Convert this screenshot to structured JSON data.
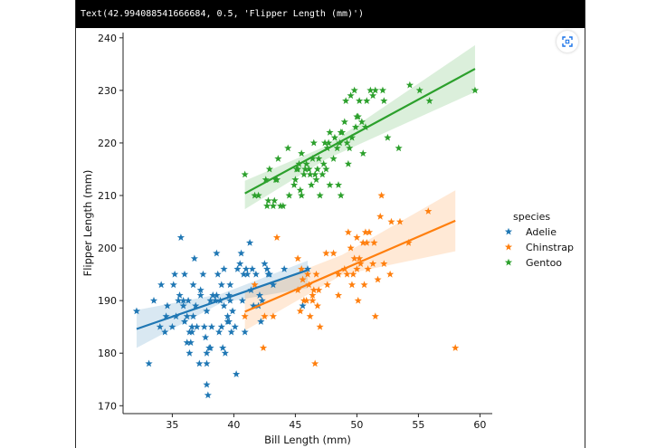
{
  "output": {
    "header_text": "Text(42.994088541666684, 0.5, 'Flipper Length (mm)')",
    "fullscreen_icon": "fullscreen-icon"
  },
  "chart_data": {
    "type": "scatter",
    "marker": "star",
    "xlabel": "Bill Length (mm)",
    "ylabel": "Flipper Length (mm)",
    "xlim": [
      31,
      61
    ],
    "ylim": [
      168.5,
      241
    ],
    "x_ticks": [
      35,
      40,
      45,
      50,
      55,
      60
    ],
    "y_ticks": [
      170,
      180,
      190,
      200,
      210,
      220,
      230,
      240
    ],
    "legend": {
      "title": "species",
      "position": "center-right"
    },
    "series": [
      {
        "name": "Adelie",
        "color": "#1f77b4",
        "regression": {
          "x": [
            32.1,
            46.0
          ],
          "y": [
            184.6,
            195.8
          ]
        },
        "ci_band": {
          "x": [
            32.1,
            39.0,
            46.0
          ],
          "upper": [
            188.2,
            191.3,
            197.6
          ],
          "lower": [
            181.0,
            189.6,
            192.4
          ]
        },
        "points": [
          [
            32.1,
            188
          ],
          [
            33.1,
            178
          ],
          [
            33.5,
            190
          ],
          [
            34.0,
            185
          ],
          [
            34.1,
            193
          ],
          [
            34.4,
            184
          ],
          [
            34.5,
            187
          ],
          [
            34.6,
            189
          ],
          [
            35.0,
            185
          ],
          [
            35.1,
            193
          ],
          [
            35.2,
            195
          ],
          [
            35.3,
            187
          ],
          [
            35.5,
            190
          ],
          [
            35.6,
            191
          ],
          [
            35.7,
            202
          ],
          [
            35.9,
            190
          ],
          [
            35.9,
            189
          ],
          [
            36.0,
            195
          ],
          [
            36.0,
            186
          ],
          [
            36.2,
            187
          ],
          [
            36.2,
            182
          ],
          [
            36.3,
            190
          ],
          [
            36.4,
            184
          ],
          [
            36.5,
            182
          ],
          [
            36.6,
            184
          ],
          [
            36.6,
            185
          ],
          [
            36.7,
            187
          ],
          [
            36.7,
            193
          ],
          [
            36.8,
            198
          ],
          [
            36.9,
            189
          ],
          [
            37.0,
            185
          ],
          [
            37.2,
            178
          ],
          [
            37.3,
            192
          ],
          [
            37.3,
            191
          ],
          [
            37.5,
            195
          ],
          [
            37.6,
            185
          ],
          [
            37.7,
            183
          ],
          [
            37.8,
            174
          ],
          [
            37.8,
            180
          ],
          [
            37.8,
            178
          ],
          [
            37.9,
            172
          ],
          [
            38.0,
            181
          ],
          [
            38.1,
            181
          ],
          [
            38.1,
            190
          ],
          [
            38.2,
            185
          ],
          [
            38.3,
            191
          ],
          [
            38.5,
            190
          ],
          [
            38.6,
            199
          ],
          [
            38.6,
            191
          ],
          [
            38.7,
            195
          ],
          [
            38.8,
            184
          ],
          [
            38.9,
            190
          ],
          [
            39.0,
            185
          ],
          [
            39.0,
            193
          ],
          [
            39.1,
            181
          ],
          [
            39.2,
            196
          ],
          [
            39.2,
            189
          ],
          [
            39.3,
            180
          ],
          [
            39.5,
            187
          ],
          [
            39.5,
            186
          ],
          [
            39.6,
            186
          ],
          [
            39.6,
            191
          ],
          [
            39.7,
            190
          ],
          [
            39.8,
            184
          ],
          [
            39.9,
            188
          ],
          [
            40.1,
            185
          ],
          [
            40.2,
            176
          ],
          [
            40.3,
            196
          ],
          [
            40.5,
            197
          ],
          [
            40.6,
            199
          ],
          [
            40.7,
            190
          ],
          [
            40.8,
            195
          ],
          [
            40.9,
            184
          ],
          [
            41.0,
            196
          ],
          [
            41.1,
            195
          ],
          [
            41.3,
            201
          ],
          [
            41.4,
            192
          ],
          [
            41.5,
            196
          ],
          [
            41.6,
            189
          ],
          [
            41.8,
            195
          ],
          [
            42.0,
            189
          ],
          [
            42.1,
            191
          ],
          [
            42.2,
            186
          ],
          [
            42.3,
            190
          ],
          [
            42.5,
            197
          ],
          [
            42.7,
            196
          ],
          [
            42.8,
            195
          ],
          [
            42.9,
            195
          ],
          [
            43.2,
            193
          ],
          [
            44.1,
            196
          ],
          [
            45.6,
            189
          ],
          [
            46.0,
            196
          ],
          [
            36.4,
            180
          ],
          [
            37.8,
            188
          ],
          [
            39.7,
            193
          ]
        ]
      },
      {
        "name": "Chinstrap",
        "color": "#ff7f0e",
        "regression": {
          "x": [
            40.9,
            58.0
          ],
          "y": [
            187.9,
            205.2
          ]
        },
        "ci_band": {
          "x": [
            40.9,
            48.8,
            58.0
          ],
          "upper": [
            191.5,
            198.7,
            211.0
          ],
          "lower": [
            184.3,
            194.9,
            199.4
          ]
        },
        "points": [
          [
            40.9,
            187
          ],
          [
            41.7,
            193
          ],
          [
            42.4,
            181
          ],
          [
            42.5,
            187
          ],
          [
            43.2,
            187
          ],
          [
            43.5,
            202
          ],
          [
            45.2,
            198
          ],
          [
            45.4,
            188
          ],
          [
            45.5,
            196
          ],
          [
            45.6,
            194
          ],
          [
            45.7,
            190
          ],
          [
            45.9,
            190
          ],
          [
            46.0,
            195
          ],
          [
            46.1,
            193
          ],
          [
            46.2,
            187
          ],
          [
            46.4,
            191
          ],
          [
            46.5,
            192
          ],
          [
            46.6,
            178
          ],
          [
            46.7,
            195
          ],
          [
            46.8,
            189
          ],
          [
            46.9,
            192
          ],
          [
            47.0,
            185
          ],
          [
            47.5,
            199
          ],
          [
            47.6,
            193
          ],
          [
            48.1,
            199
          ],
          [
            48.5,
            191
          ],
          [
            49.0,
            196
          ],
          [
            49.2,
            195
          ],
          [
            49.3,
            203
          ],
          [
            49.5,
            200
          ],
          [
            49.6,
            193
          ],
          [
            49.7,
            195
          ],
          [
            49.8,
            198
          ],
          [
            50.0,
            196
          ],
          [
            50.1,
            190
          ],
          [
            50.2,
            198
          ],
          [
            50.3,
            197
          ],
          [
            50.5,
            201
          ],
          [
            50.6,
            193
          ],
          [
            50.7,
            203
          ],
          [
            50.8,
            201
          ],
          [
            50.9,
            196
          ],
          [
            51.0,
            203
          ],
          [
            51.3,
            197
          ],
          [
            51.4,
            201
          ],
          [
            51.5,
            187
          ],
          [
            51.7,
            194
          ],
          [
            51.9,
            206
          ],
          [
            52.0,
            210
          ],
          [
            52.2,
            197
          ],
          [
            52.7,
            195
          ],
          [
            52.8,
            205
          ],
          [
            53.5,
            205
          ],
          [
            54.2,
            201
          ],
          [
            55.8,
            207
          ],
          [
            58.0,
            181
          ],
          [
            48.5,
            195
          ],
          [
            50.0,
            202
          ],
          [
            45.2,
            192
          ],
          [
            46.4,
            190
          ]
        ]
      },
      {
        "name": "Gentoo",
        "color": "#2ca02c",
        "regression": {
          "x": [
            40.9,
            59.6
          ],
          "y": [
            210.4,
            234.1
          ]
        },
        "ci_band": {
          "x": [
            40.9,
            47.5,
            59.6
          ],
          "upper": [
            212.8,
            219.4,
            238.6
          ],
          "lower": [
            207.4,
            216.9,
            229.7
          ]
        },
        "points": [
          [
            40.9,
            214
          ],
          [
            41.7,
            210
          ],
          [
            42.0,
            210
          ],
          [
            42.6,
            213
          ],
          [
            42.7,
            208
          ],
          [
            42.8,
            209
          ],
          [
            42.9,
            215
          ],
          [
            43.2,
            208
          ],
          [
            43.3,
            209
          ],
          [
            43.4,
            213
          ],
          [
            43.5,
            213
          ],
          [
            43.6,
            217
          ],
          [
            43.8,
            208
          ],
          [
            44.0,
            208
          ],
          [
            44.4,
            219
          ],
          [
            44.5,
            210
          ],
          [
            44.9,
            212
          ],
          [
            45.0,
            213
          ],
          [
            45.1,
            215
          ],
          [
            45.2,
            215
          ],
          [
            45.3,
            216
          ],
          [
            45.4,
            211
          ],
          [
            45.5,
            210
          ],
          [
            45.7,
            214
          ],
          [
            45.8,
            215
          ],
          [
            45.9,
            216
          ],
          [
            46.1,
            215
          ],
          [
            46.2,
            214
          ],
          [
            46.3,
            212
          ],
          [
            46.4,
            217
          ],
          [
            46.5,
            220
          ],
          [
            46.6,
            214
          ],
          [
            46.7,
            213
          ],
          [
            46.8,
            215
          ],
          [
            46.9,
            217
          ],
          [
            47.0,
            210
          ],
          [
            47.2,
            214
          ],
          [
            47.3,
            216
          ],
          [
            47.4,
            220
          ],
          [
            47.5,
            215
          ],
          [
            47.6,
            219
          ],
          [
            47.7,
            220
          ],
          [
            47.8,
            212
          ],
          [
            48.1,
            217
          ],
          [
            48.2,
            221
          ],
          [
            48.4,
            219
          ],
          [
            48.5,
            212
          ],
          [
            48.6,
            220
          ],
          [
            48.7,
            222
          ],
          [
            48.8,
            222
          ],
          [
            49.0,
            224
          ],
          [
            49.1,
            228
          ],
          [
            49.2,
            220
          ],
          [
            49.3,
            216
          ],
          [
            49.4,
            219
          ],
          [
            49.5,
            229
          ],
          [
            49.6,
            221
          ],
          [
            49.8,
            230
          ],
          [
            49.9,
            223
          ],
          [
            50.0,
            225
          ],
          [
            50.1,
            225
          ],
          [
            50.2,
            228
          ],
          [
            50.4,
            224
          ],
          [
            50.5,
            218
          ],
          [
            50.7,
            223
          ],
          [
            50.8,
            228
          ],
          [
            51.1,
            230
          ],
          [
            51.3,
            229
          ],
          [
            51.5,
            230
          ],
          [
            52.1,
            230
          ],
          [
            52.2,
            228
          ],
          [
            52.5,
            221
          ],
          [
            53.4,
            219
          ],
          [
            54.3,
            231
          ],
          [
            55.1,
            230
          ],
          [
            55.9,
            228
          ],
          [
            59.6,
            230
          ],
          [
            48.7,
            210
          ],
          [
            45.5,
            218
          ],
          [
            47.8,
            222
          ]
        ]
      }
    ]
  }
}
